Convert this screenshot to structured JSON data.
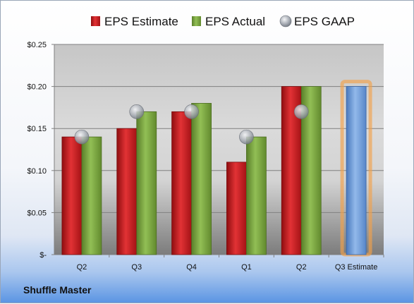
{
  "company": "Shuffle Master",
  "colors": {
    "estimate": "#c0191c",
    "actual": "#77a23a",
    "gaap": "#9aa0a8",
    "forecast": "#6c9bd6",
    "forecast_glow": "#f2a14a"
  },
  "chart_data": {
    "type": "bar",
    "categories": [
      "Q2",
      "Q3",
      "Q4",
      "Q1",
      "Q2",
      "Q3 Estimate"
    ],
    "series": [
      {
        "name": "EPS Estimate",
        "values": [
          0.14,
          0.15,
          0.17,
          0.11,
          0.2,
          null
        ]
      },
      {
        "name": "EPS Actual",
        "values": [
          0.14,
          0.17,
          0.18,
          0.14,
          0.2,
          null
        ]
      },
      {
        "name": "EPS GAAP",
        "values": [
          0.14,
          0.17,
          0.17,
          0.14,
          0.17,
          null
        ]
      }
    ],
    "forecast": {
      "category": "Q3 Estimate",
      "value": 0.2
    },
    "ylim": [
      0,
      0.25
    ],
    "yticks": [
      0,
      0.05,
      0.1,
      0.15,
      0.2,
      0.25
    ],
    "ytick_labels": [
      "$-",
      "$0.05",
      "$0.10",
      "$0.15",
      "$0.20",
      "$0.25"
    ],
    "legend": [
      "EPS Estimate",
      "EPS Actual",
      "EPS GAAP"
    ],
    "legend_position": "top",
    "grid": true
  }
}
